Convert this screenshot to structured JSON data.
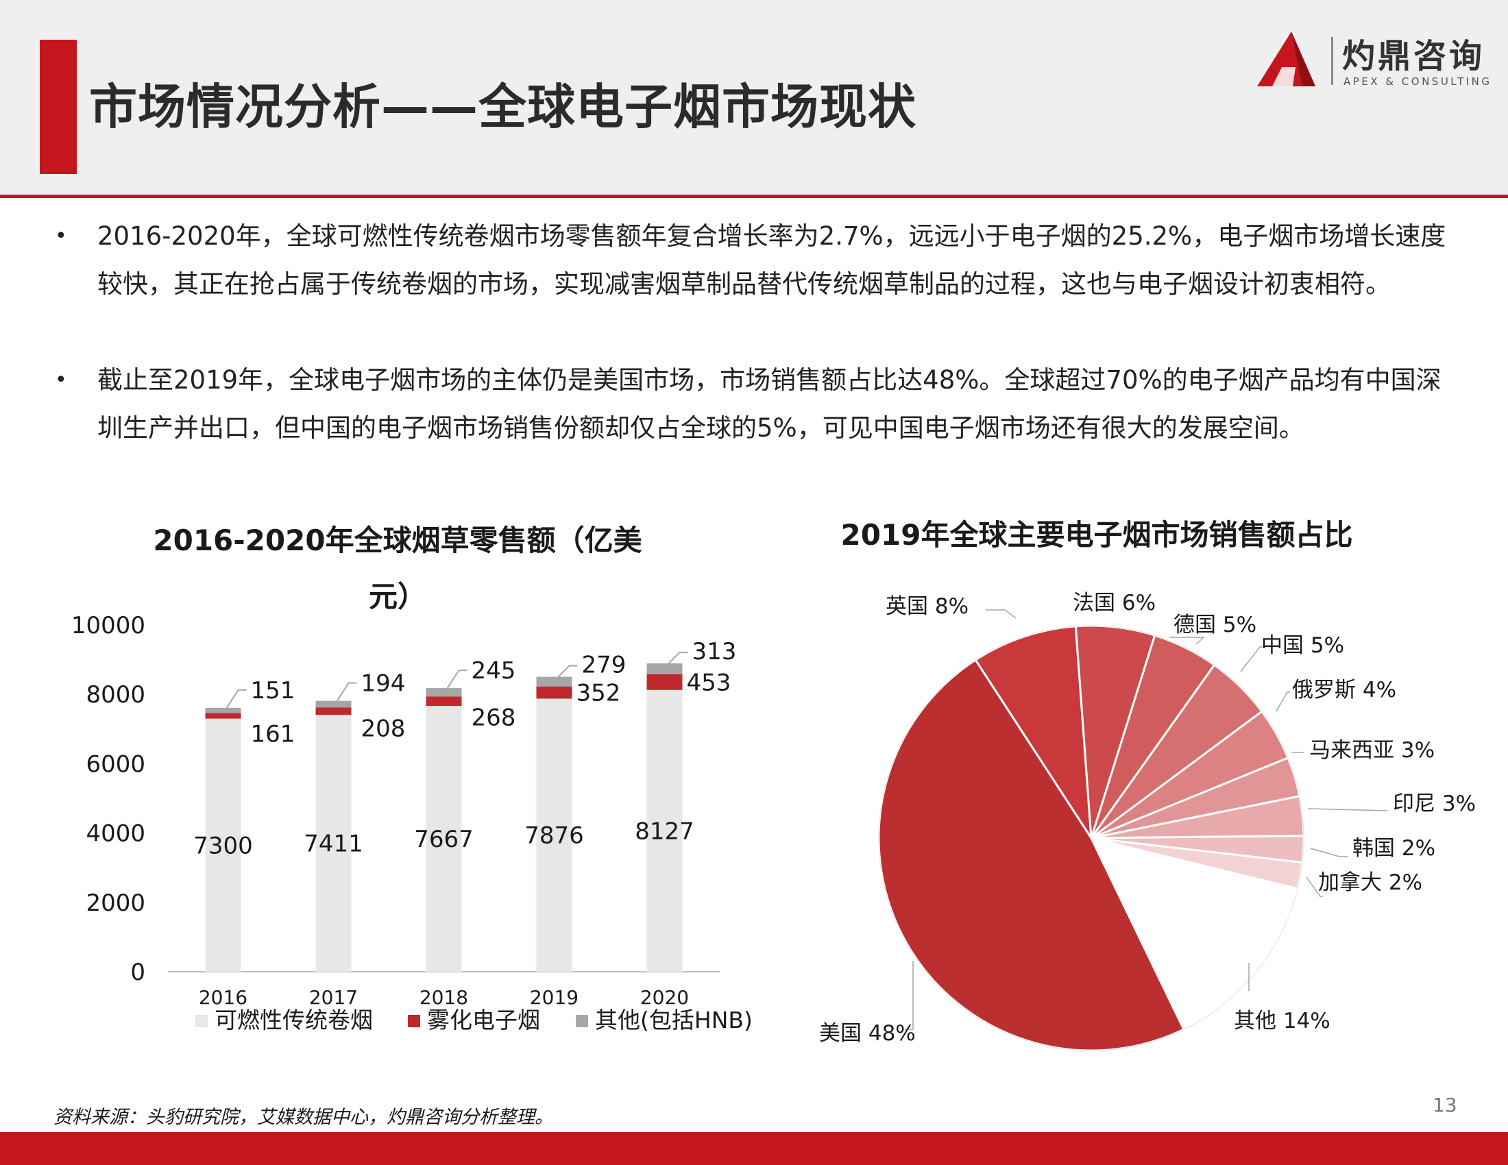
{
  "header": {
    "title": "市场情况分析——全球电子烟市场现状",
    "logo_cn": "灼鼎咨询",
    "logo_en": "APEX & CONSULTING"
  },
  "bullets": [
    "2016-2020年，全球可燃性传统卷烟市场零售额年复合增长率为2.7%，远远小于电子烟的25.2%，电子烟市场增长速度较快，其正在抢占属于传统卷烟的市场，实现减害烟草制品替代传统烟草制品的过程，这也与电子烟设计初衷相符。",
    "截止至2019年，全球电子烟市场的主体仍是美国市场，市场销售额占比达48%。全球超过70%的电子烟产品均有中国深圳生产并出口，但中国的电子烟市场销售份额却仅占全球的5%，可见中国电子烟市场还有很大的发展空间。"
  ],
  "footer": {
    "source": "资料来源：头豹研究院，艾媒数据中心，灼鼎咨询分析整理。",
    "page": "13"
  },
  "colors": {
    "accent": "#c4161c",
    "traditional": "#e8e6e6",
    "ecig": "#c0282c",
    "other": "#a6a6a6"
  },
  "chart_data": [
    {
      "type": "bar",
      "stacked": true,
      "title": "2016-2020年全球烟草零售额（亿美元）",
      "categories": [
        "2016",
        "2017",
        "2018",
        "2019",
        "2020"
      ],
      "series": [
        {
          "name": "可燃性传统卷烟",
          "color": "#e8e6e6",
          "values": [
            7300,
            7411,
            7667,
            7876,
            8127
          ]
        },
        {
          "name": "雾化电子烟",
          "color": "#c0282c",
          "values": [
            161,
            208,
            268,
            352,
            453
          ]
        },
        {
          "name": "其他(包括HNB)",
          "color": "#a6a6a6",
          "values": [
            151,
            194,
            245,
            279,
            313
          ]
        }
      ],
      "ylim": [
        0,
        10000
      ],
      "yticks": [
        "0",
        "2000",
        "4000",
        "6000",
        "8000",
        "10000"
      ],
      "legend": "bottom",
      "grid": false
    },
    {
      "type": "pie",
      "title": "2019年全球主要电子烟市场销售额占比",
      "slices": [
        {
          "label": "英国 8%",
          "value": 8,
          "color": "#c9383a"
        },
        {
          "label": "法国 6%",
          "value": 6,
          "color": "#cc4a4c"
        },
        {
          "label": "德国 5%",
          "value": 5,
          "color": "#d15c5d"
        },
        {
          "label": "中国 5%",
          "value": 5,
          "color": "#d66f70"
        },
        {
          "label": "俄罗斯 4%",
          "value": 4,
          "color": "#dc8283"
        },
        {
          "label": "马来西亚 3%",
          "value": 3,
          "color": "#e29596"
        },
        {
          "label": "印尼 3%",
          "value": 3,
          "color": "#e8a9aa"
        },
        {
          "label": "韩国 2%",
          "value": 2,
          "color": "#eebdbd"
        },
        {
          "label": "加拿大 2%",
          "value": 2,
          "color": "#f3d2d2"
        },
        {
          "label": "其他 14%",
          "value": 14,
          "color": "#ffffff"
        },
        {
          "label": "美国 48%",
          "value": 48,
          "color": "#bc2f31"
        }
      ],
      "legend": "none"
    }
  ]
}
